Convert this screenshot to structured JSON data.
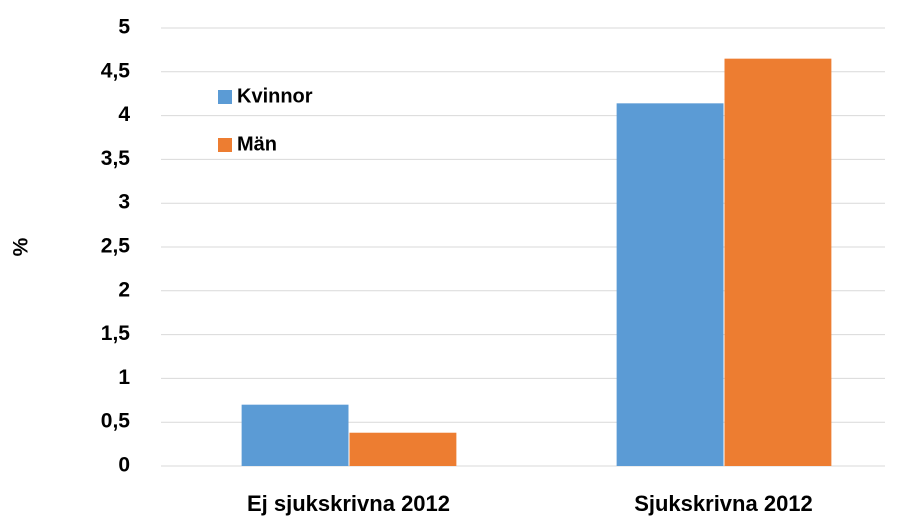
{
  "chart_data": {
    "type": "bar",
    "categories": [
      "Ej sjukskrivna 2012",
      "Sjukskrivna 2012"
    ],
    "series": [
      {
        "name": "Kvinnor",
        "color": "#5b9bd5",
        "values": [
          0.7,
          4.14
        ]
      },
      {
        "name": "Män",
        "color": "#ed7d31",
        "values": [
          0.38,
          4.65
        ]
      }
    ],
    "y_label": "%",
    "ylim": [
      0,
      5
    ],
    "yticks": [
      0,
      {
        "value": 0.5,
        "label": "0,5"
      },
      1,
      {
        "value": 1.5,
        "label": "1,5"
      },
      2,
      {
        "value": 2.5,
        "label": "2,5"
      },
      3,
      {
        "value": 3.5,
        "label": "3,5"
      },
      4,
      {
        "value": 4.5,
        "label": "4,5"
      },
      5
    ],
    "grid": true,
    "legend": "upper left"
  }
}
